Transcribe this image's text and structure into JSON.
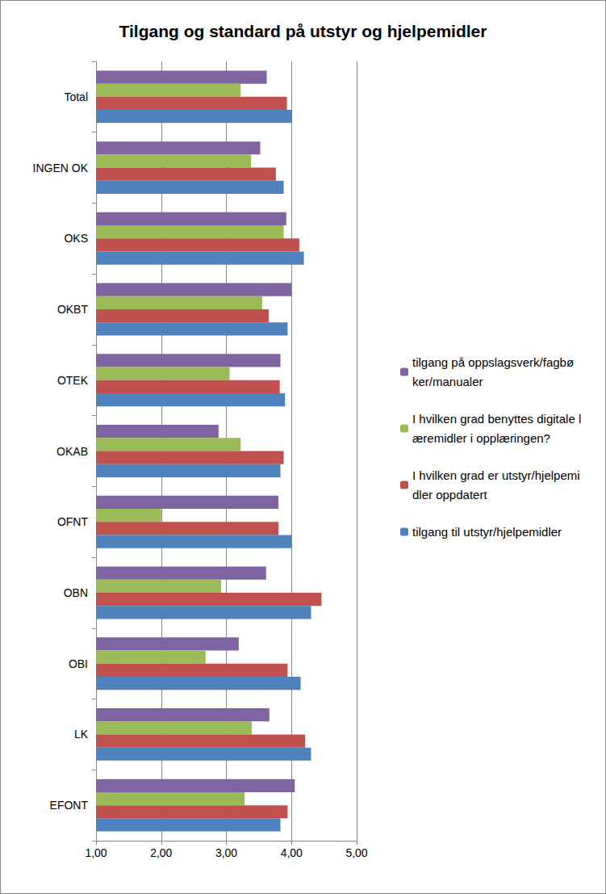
{
  "chart_data": {
    "type": "bar",
    "orientation": "horizontal",
    "title": "Tilgang og standard på utstyr og hjelpemidler",
    "categories": [
      "Total",
      "INGEN OK",
      "OKS",
      "OKBT",
      "OTEK",
      "OKAB",
      "OFNT",
      "OBN",
      "OBI",
      "LK",
      "EFONT"
    ],
    "series": [
      {
        "name": "tilgang på oppslagsverk/fagbøker/manualer",
        "color": "#8064A2",
        "values": [
          3.62,
          3.52,
          3.92,
          4.0,
          3.83,
          2.88,
          3.8,
          3.61,
          3.19,
          3.66,
          4.05
        ]
      },
      {
        "name": "I hvilken grad benyttes digitale læremidler i opplæringen?",
        "color": "#9BBB59",
        "values": [
          3.22,
          3.38,
          3.88,
          3.55,
          3.05,
          3.22,
          2.0,
          2.92,
          2.68,
          3.39,
          3.28
        ]
      },
      {
        "name": "I hvilken grad er utstyr/hjelpemidler oppdatert",
        "color": "#C0504D",
        "values": [
          3.93,
          3.76,
          4.12,
          3.65,
          3.82,
          3.88,
          3.8,
          4.46,
          3.94,
          4.21,
          3.94
        ]
      },
      {
        "name": "tilgang til utstyr/hjelpemidler",
        "color": "#4F81BD",
        "values": [
          4.01,
          3.88,
          4.19,
          3.94,
          3.9,
          3.83,
          4.0,
          4.3,
          4.14,
          4.3,
          3.83
        ]
      }
    ],
    "xlim": [
      1,
      5
    ],
    "xticks": [
      {
        "value": 1,
        "label": "1,00"
      },
      {
        "value": 2,
        "label": "2,00"
      },
      {
        "value": 3,
        "label": "3,00"
      },
      {
        "value": 4,
        "label": "4,00"
      },
      {
        "value": 5,
        "label": "5,00"
      }
    ],
    "grid": true,
    "legend": "right"
  }
}
